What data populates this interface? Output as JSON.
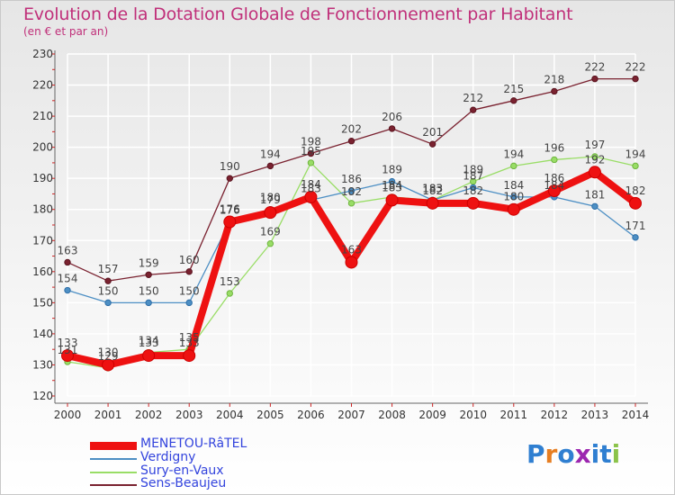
{
  "header": {
    "title": "Evolution de la Dotation Globale de Fonctionnement par Habitant",
    "subtitle": "(en € et par an)"
  },
  "logo": {
    "text": "Proxiti",
    "colors": [
      "#2f7fd1",
      "#e67e22",
      "#2f7fd1",
      "#9c27b0",
      "#2f7fd1",
      "#2f7fd1",
      "#8bc34a"
    ]
  },
  "chart_data": {
    "type": "line",
    "title": "Evolution de la Dotation Globale de Fonctionnement par Habitant",
    "subtitle": "(en € et par an)",
    "xlabel": "",
    "ylabel": "",
    "ylim": [
      120,
      230
    ],
    "yticks": [
      120,
      130,
      140,
      150,
      160,
      170,
      180,
      190,
      200,
      210,
      220,
      230
    ],
    "grid": true,
    "legend_position": "bottom-left",
    "x": [
      "2000",
      "2001",
      "2002",
      "2003",
      "2004",
      "2005",
      "2006",
      "2007",
      "2008",
      "2009",
      "2010",
      "2011",
      "2012",
      "2013",
      "2014"
    ],
    "series": [
      {
        "name": "Sens-Beaujeu",
        "color": "#7a2230",
        "values": [
          163,
          157,
          159,
          160,
          190,
          194,
          198,
          202,
          206,
          201,
          212,
          215,
          218,
          222,
          222
        ]
      },
      {
        "name": "Sury-en-Vaux",
        "color": "#99dd66",
        "values": [
          131,
          129,
          134,
          135,
          153,
          169,
          195,
          182,
          184,
          183,
          189,
          194,
          196,
          197,
          194
        ]
      },
      {
        "name": "Verdigny",
        "color": "#4d8fc4",
        "values": [
          154,
          150,
          150,
          150,
          176,
          180,
          183,
          186,
          189,
          183,
          187,
          184,
          184,
          181,
          171
        ]
      },
      {
        "name": "MENETOU-RâTEL",
        "color": "#ee1111",
        "values": [
          133,
          130,
          133,
          133,
          176,
          179,
          184,
          163,
          183,
          182,
          182,
          180,
          186,
          192,
          182
        ]
      }
    ],
    "legend": [
      "MENETOU-RâTEL",
      "Verdigny",
      "Sury-en-Vaux",
      "Sens-Beaujeu"
    ]
  }
}
